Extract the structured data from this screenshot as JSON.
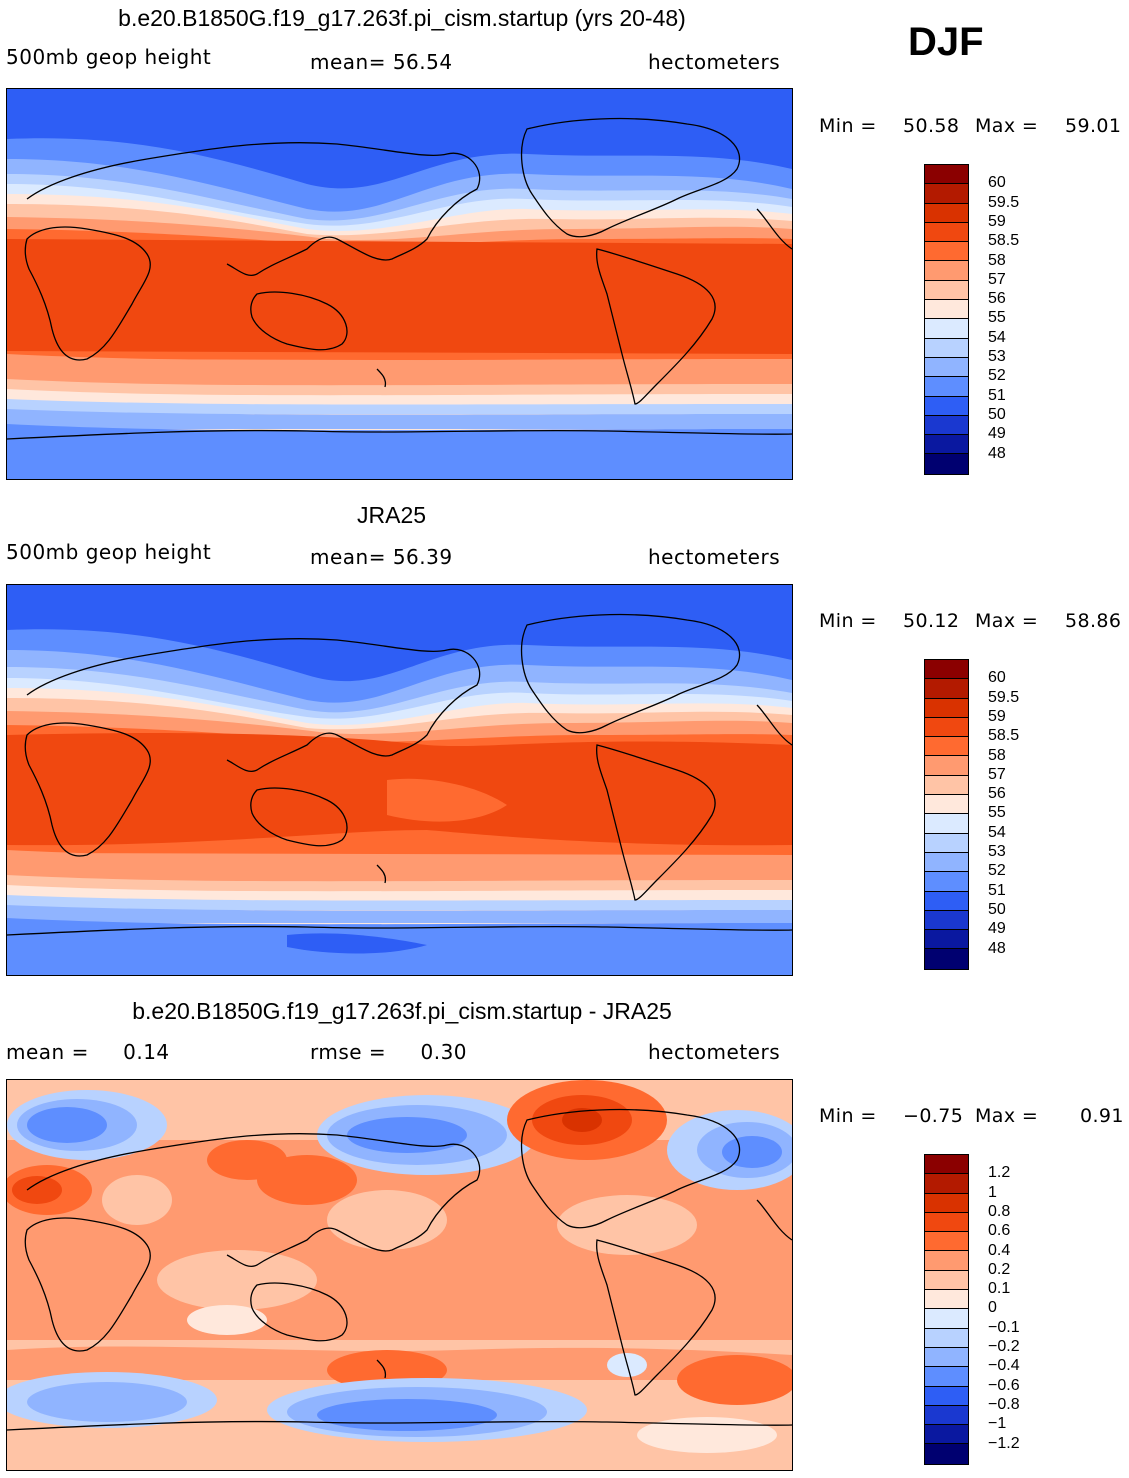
{
  "season": "DJF",
  "panels": [
    {
      "id": "model",
      "title": "b.e20.B1850G.f19_g17.263f.pi_cism.startup (yrs 20-48)",
      "left_label": "500mb geop height",
      "center_label": "mean=   56.54",
      "right_label": "hectometers",
      "min_label": "Min =",
      "min_value": "50.58",
      "max_label": "Max =",
      "max_value": "59.01",
      "legend_labels": [
        "60",
        "59.5",
        "59",
        "58.5",
        "58",
        "57",
        "56",
        "55",
        "54",
        "53",
        "52",
        "51",
        "50",
        "49",
        "48"
      ],
      "legend_colors": [
        "#8b0000",
        "#b31a00",
        "#d93200",
        "#f04810",
        "#ff6a30",
        "#ff9a70",
        "#ffc4a6",
        "#ffe8dc",
        "#dbeaff",
        "#b8d2ff",
        "#90b4ff",
        "#5e8eff",
        "#2e5ef5",
        "#1a38d0",
        "#0a18a0",
        "#000070"
      ]
    },
    {
      "id": "obs",
      "title": "JRA25",
      "left_label": "500mb geop height",
      "center_label": "mean=   56.39",
      "right_label": "hectometers",
      "min_label": "Min =",
      "min_value": "50.12",
      "max_label": "Max =",
      "max_value": "58.86",
      "legend_labels": [
        "60",
        "59.5",
        "59",
        "58.5",
        "58",
        "57",
        "56",
        "55",
        "54",
        "53",
        "52",
        "51",
        "50",
        "49",
        "48"
      ],
      "legend_colors": [
        "#8b0000",
        "#b31a00",
        "#d93200",
        "#f04810",
        "#ff6a30",
        "#ff9a70",
        "#ffc4a6",
        "#ffe8dc",
        "#dbeaff",
        "#b8d2ff",
        "#90b4ff",
        "#5e8eff",
        "#2e5ef5",
        "#1a38d0",
        "#0a18a0",
        "#000070"
      ]
    },
    {
      "id": "diff",
      "title": "b.e20.B1850G.f19_g17.263f.pi_cism.startup - JRA25",
      "left_label": "mean =     0.14",
      "center_label": "rmse =     0.30",
      "right_label": "hectometers",
      "min_label": "Min =",
      "min_value": "−0.75",
      "max_label": "Max =",
      "max_value": "0.91",
      "legend_labels": [
        "1.2",
        "1",
        "0.8",
        "0.6",
        "0.4",
        "0.2",
        "0.1",
        "0",
        "−0.1",
        "−0.2",
        "−0.4",
        "−0.6",
        "−0.8",
        "−1",
        "−1.2"
      ],
      "legend_colors": [
        "#8b0000",
        "#b31a00",
        "#d93200",
        "#f04810",
        "#ff6a30",
        "#ff9a70",
        "#ffc4a6",
        "#ffe8dc",
        "#dbeaff",
        "#b8d2ff",
        "#90b4ff",
        "#5e8eff",
        "#2e5ef5",
        "#1a38d0",
        "#0a18a0",
        "#000070"
      ]
    }
  ]
}
